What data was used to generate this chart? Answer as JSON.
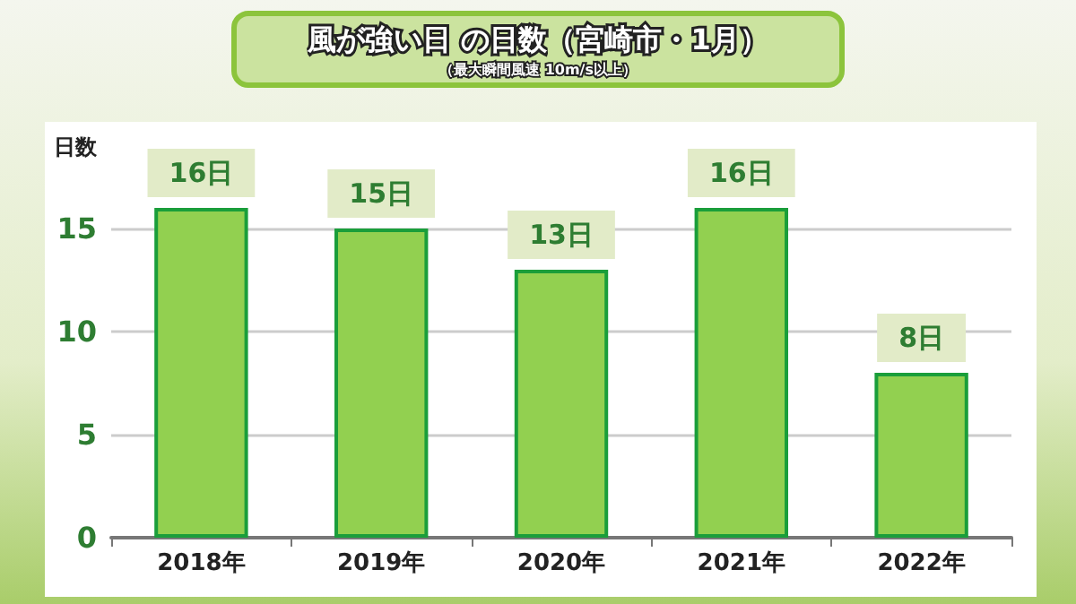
{
  "chart_data": {
    "type": "bar",
    "title": "風が強い日 の日数（宮崎市・1月）",
    "subtitle": "（最大瞬間風速 10m/s以上）",
    "ylabel": "日数",
    "categories": [
      "2018年",
      "2019年",
      "2020年",
      "2021年",
      "2022年"
    ],
    "values": [
      16,
      15,
      13,
      16,
      8
    ],
    "value_labels": [
      "16日",
      "15日",
      "13日",
      "16日",
      "8日"
    ],
    "color": "#92d050",
    "ylim": [
      0,
      20
    ],
    "yticks": [
      0,
      5,
      10,
      15
    ],
    "grid": "y"
  }
}
